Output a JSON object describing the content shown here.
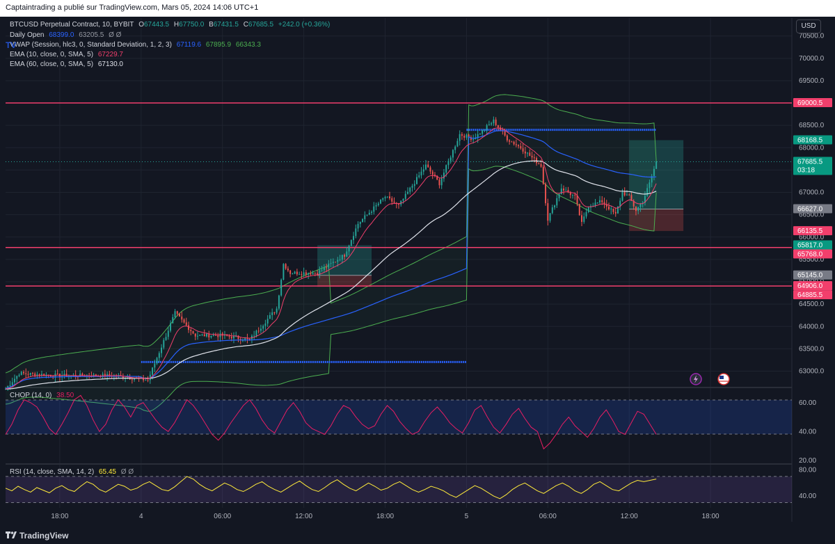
{
  "header": {
    "publisher_line": "Captaintrading a publié sur TradingView.com, Mars 05, 2024 14:06 UTC+1"
  },
  "legend": {
    "symbol": "BTCUSD Perpetual Contract, 10, BYBIT",
    "ohlc": {
      "o_label": "O",
      "o": "67443.5",
      "h_label": "H",
      "h": "67750.0",
      "b_label": "B",
      "b": "67431.5",
      "c_label": "C",
      "c": "67685.5",
      "change": "+242.0 (+0.36%)"
    },
    "daily_open": {
      "label": "Daily Open",
      "v1": "68399.0",
      "v2": "63205.5",
      "extra": "Ø Ø"
    },
    "vwap": {
      "label": "VWAP (Session, hlc3, 0, Standard Deviation, 1, 2, 3)",
      "v1": "67119.6",
      "v2": "67895.9",
      "v3": "66343.3"
    },
    "ema10": {
      "label": "EMA (10, close, 0, SMA, 5)",
      "value": "67229.7"
    },
    "ema60": {
      "label": "EMA (60, close, 0, SMA, 5)",
      "value": "67130.0"
    },
    "tv_watermark": "TV"
  },
  "currency_button": "USD",
  "colors": {
    "background": "#131722",
    "grid": "#1f2430",
    "up": "#26a69a",
    "down": "#ef5350",
    "level_line": "#f23f6c",
    "daily_open": "#2962ff",
    "ema10": "#f23f6c",
    "ema60": "#e0e3eb",
    "vwap": "#2962ff",
    "vwap_band": "#4caf50",
    "chop": "#e91e63",
    "rsi": "#ffeb3b",
    "projection": "#26a69a"
  },
  "chart_data": [
    {
      "type": "candlestick",
      "title": "BTCUSD Perpetual Contract, 10, BYBIT",
      "ylim": [
        62650,
        70900
      ],
      "y_ticks": [
        "70500.0",
        "70000.0",
        "69500.0",
        "69000.0",
        "68500.0",
        "68000.0",
        "67500.0",
        "67000.0",
        "66500.0",
        "66000.0",
        "65500.0",
        "65000.0",
        "64500.0",
        "64000.0",
        "63500.0",
        "63000.0"
      ],
      "x_ticks": [
        "18:00",
        "4",
        "06:00",
        "12:00",
        "18:00",
        "5",
        "06:00",
        "12:00",
        "18:00"
      ],
      "price_labels": [
        {
          "value": "69000.5",
          "price": 69000.5,
          "color": "#f23f6c"
        },
        {
          "value": "68168.5",
          "price": 68168.5,
          "color": "#089981"
        },
        {
          "value": "67685.5",
          "price": 67685.5,
          "color": "#089981",
          "sub": "03:18"
        },
        {
          "value": "66627.0",
          "price": 66627.0,
          "color": "#787b86"
        },
        {
          "value": "66135.5",
          "price": 66135.5,
          "color": "#f23f6c"
        },
        {
          "value": "65817.0",
          "price": 65817.0,
          "color": "#089981"
        },
        {
          "value": "65768.0",
          "price": 65768.0,
          "color": "#f23f6c"
        },
        {
          "value": "65145.0",
          "price": 65145.0,
          "color": "#787b86"
        },
        {
          "value": "64906.0",
          "price": 64906.0,
          "color": "#f23f6c"
        },
        {
          "value": "64885.5",
          "price": 64885.5,
          "color": "#f23f6c"
        }
      ],
      "horizontal_levels": [
        69000.5,
        65768.0,
        64906.0
      ],
      "daily_open_segments": [
        {
          "from": "day 4 00:00",
          "to": "day 5 00:00",
          "price": 63205.5
        },
        {
          "from": "day 5 00:00",
          "to": "day 5 14:00",
          "price": 68399.0
        }
      ],
      "key_points": [
        {
          "time": "day 3 14:00",
          "price": 62600
        },
        {
          "time": "day 3 15:00",
          "price": 62950
        },
        {
          "time": "day 3 18:00",
          "price": 62900
        },
        {
          "time": "day 3 22:00",
          "price": 62900
        },
        {
          "time": "day 4 00:30",
          "price": 62800
        },
        {
          "time": "day 4 02:30",
          "price": 64300
        },
        {
          "time": "day 4 04:00",
          "price": 63800
        },
        {
          "time": "day 4 06:00",
          "price": 63800
        },
        {
          "time": "day 4 08:00",
          "price": 63700
        },
        {
          "time": "day 4 10:00",
          "price": 64400
        },
        {
          "time": "day 4 10:30",
          "price": 65400
        },
        {
          "time": "day 4 11:00",
          "price": 65200
        },
        {
          "time": "day 4 13:00",
          "price": 65200
        },
        {
          "time": "day 4 15:00",
          "price": 65600
        },
        {
          "time": "day 4 16:00",
          "price": 66300
        },
        {
          "time": "day 4 18:00",
          "price": 66900
        },
        {
          "time": "day 4 19:00",
          "price": 66700
        },
        {
          "time": "day 4 21:00",
          "price": 67600
        },
        {
          "time": "day 4 22:00",
          "price": 67200
        },
        {
          "time": "day 4 23:30",
          "price": 68300
        },
        {
          "time": "day 5 00:30",
          "price": 68200
        },
        {
          "time": "day 5 02:00",
          "price": 68600
        },
        {
          "time": "day 5 03:00",
          "price": 68200
        },
        {
          "time": "day 5 04:00",
          "price": 68000
        },
        {
          "time": "day 5 05:30",
          "price": 67600
        },
        {
          "time": "day 5 06:00",
          "price": 66400
        },
        {
          "time": "day 5 07:00",
          "price": 67100
        },
        {
          "time": "day 5 08:00",
          "price": 66900
        },
        {
          "time": "day 5 08:30",
          "price": 66300
        },
        {
          "time": "day 5 09:00",
          "price": 66700
        },
        {
          "time": "day 5 10:00",
          "price": 66800
        },
        {
          "time": "day 5 11:00",
          "price": 66500
        },
        {
          "time": "day 5 11:30",
          "price": 67000
        },
        {
          "time": "day 5 12:00",
          "price": 66900
        },
        {
          "time": "day 5 12:30",
          "price": 66600
        },
        {
          "time": "day 5 13:00",
          "price": 66800
        },
        {
          "time": "day 5 13:30",
          "price": 67200
        },
        {
          "time": "day 5 14:00",
          "price": 67685.5
        }
      ],
      "annotations": [
        {
          "type": "long-position",
          "entry": 66627.0,
          "target": 68168.5,
          "stop": 66135.5,
          "from": "day 5 12:00",
          "to": "day 5 16:00"
        },
        {
          "type": "long-position",
          "entry": 65145.0,
          "target": 65817.0,
          "stop": 64885.5,
          "from": "day 4 13:00",
          "to": "day 4 17:00"
        }
      ]
    },
    {
      "type": "line",
      "title": "CHOP (14, 0)",
      "current_value": "38.50",
      "ylim": [
        18,
        70
      ],
      "y_ticks": [
        "60.00",
        "40.00",
        "20.00"
      ],
      "bands": [
        61.8,
        38.2
      ],
      "series": [
        {
          "name": "CHOP (14, 0)",
          "values": [
            38,
            45,
            55,
            62,
            60,
            57,
            50,
            42,
            38,
            45,
            53,
            62,
            65,
            58,
            48,
            40,
            45,
            55,
            62,
            57,
            50,
            58,
            60,
            54,
            48,
            43,
            40,
            46,
            54,
            62,
            58,
            52,
            45,
            38,
            34,
            39,
            46,
            52,
            58,
            62,
            56,
            48,
            42,
            39,
            47,
            55,
            60,
            54,
            46,
            42,
            40,
            38,
            44,
            52,
            58,
            56,
            50,
            45,
            42,
            44,
            52,
            58,
            54,
            47,
            42,
            38,
            40,
            47,
            53,
            57,
            52,
            46,
            42,
            39,
            46,
            55,
            58,
            50,
            43,
            39,
            45,
            52,
            56,
            49,
            43,
            40,
            28,
            32,
            38,
            45,
            50,
            44,
            40,
            36,
            42,
            50,
            55,
            48,
            40,
            38,
            46,
            54,
            52,
            45,
            38
          ]
        }
      ]
    },
    {
      "type": "line",
      "title": "RSI (14, close, SMA, 14, 2)",
      "current_value": "65.45",
      "ylim": [
        22,
        88
      ],
      "y_ticks": [
        "80.00",
        "40.00"
      ],
      "bands": [
        70,
        30
      ],
      "series": [
        {
          "name": "RSI (14, close, SMA, 14, 2)",
          "values": [
            52,
            48,
            55,
            50,
            46,
            53,
            49,
            45,
            52,
            56,
            50,
            47,
            55,
            62,
            58,
            50,
            46,
            52,
            58,
            55,
            49,
            52,
            58,
            62,
            56,
            50,
            48,
            54,
            62,
            70,
            66,
            58,
            52,
            48,
            54,
            60,
            56,
            50,
            47,
            52,
            58,
            62,
            55,
            50,
            46,
            52,
            58,
            63,
            56,
            50,
            47,
            53,
            60,
            65,
            58,
            52,
            48,
            54,
            60,
            55,
            49,
            52,
            58,
            62,
            56,
            50,
            46,
            50,
            55,
            52,
            48,
            42,
            38,
            44,
            50,
            56,
            52,
            46,
            40,
            36,
            42,
            50,
            56,
            60,
            54,
            48,
            44,
            50,
            56,
            60,
            55,
            48,
            44,
            50,
            58,
            62,
            56,
            50,
            48,
            54,
            60,
            64,
            62,
            64,
            66
          ]
        }
      ]
    }
  ],
  "pane_labels": {
    "chop": {
      "name": "CHOP (14, 0)",
      "value": "38.50"
    },
    "rsi": {
      "name": "RSI (14, close, SMA, 14, 2)",
      "value": "65.45",
      "extra": "Ø Ø"
    }
  },
  "footer": {
    "brand": "TradingView"
  }
}
